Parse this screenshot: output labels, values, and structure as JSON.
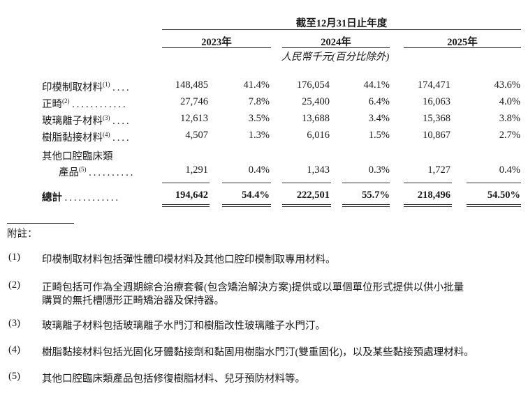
{
  "header": {
    "period": "截至12月31日止年度",
    "years": [
      "2023年",
      "2024年",
      "2025年"
    ],
    "unit": "人民幣千元(百分比除外)"
  },
  "rows": [
    {
      "label": "印模制取材料",
      "note": "(1)",
      "dots": "....",
      "values": [
        "148,485",
        "41.4%",
        "176,054",
        "44.1%",
        "174,471",
        "43.6%"
      ]
    },
    {
      "label": "正畸",
      "note": "(2)",
      "dots": "............",
      "values": [
        "27,746",
        "7.8%",
        "25,400",
        "6.4%",
        "16,063",
        "4.0%"
      ]
    },
    {
      "label": "玻璃離子材料",
      "note": "(3)",
      "dots": "....",
      "values": [
        "12,613",
        "3.5%",
        "13,688",
        "3.4%",
        "15,368",
        "3.8%"
      ]
    },
    {
      "label": "樹脂黏接材料",
      "note": "(4)",
      "dots": "....",
      "values": [
        "4,507",
        "1.3%",
        "6,016",
        "1.5%",
        "10,867",
        "2.7%"
      ]
    },
    {
      "label": "其他口腔臨床類",
      "label2": "產品",
      "note": "(5)",
      "dots": "..........",
      "values": [
        "1,291",
        "0.4%",
        "1,343",
        "0.3%",
        "1,727",
        "0.4%"
      ]
    }
  ],
  "total": {
    "label": "總計",
    "dots": "............",
    "values": [
      "194,642",
      "54.4%",
      "222,501",
      "55.7%",
      "218,496",
      "54.50%"
    ]
  },
  "notes_title": "附註：",
  "notes": [
    {
      "num": "(1)",
      "lines": [
        "印模制取材料包括彈性體印模材料及其他口腔印模制取專用材料。"
      ]
    },
    {
      "num": "(2)",
      "lines": [
        "正畸包括可作為全週期綜合治療套餐(包含矯治解決方案)提供或以單個單位形式提供以供小批量",
        "購買的無托槽隱形正畸矯治器及保持器。"
      ]
    },
    {
      "num": "(3)",
      "lines": [
        "玻璃離子材料包括玻璃離子水門汀和樹脂改性玻璃離子水門汀。"
      ]
    },
    {
      "num": "(4)",
      "lines": [
        "樹脂黏接材料包括光固化牙體黏接劑和黏固用樹脂水門汀(雙重固化)，以及某些黏接預處理材料。"
      ]
    },
    {
      "num": "(5)",
      "lines": [
        "其他口腔臨床類產品包括修復樹脂材料、兒牙預防材料等。"
      ]
    }
  ]
}
